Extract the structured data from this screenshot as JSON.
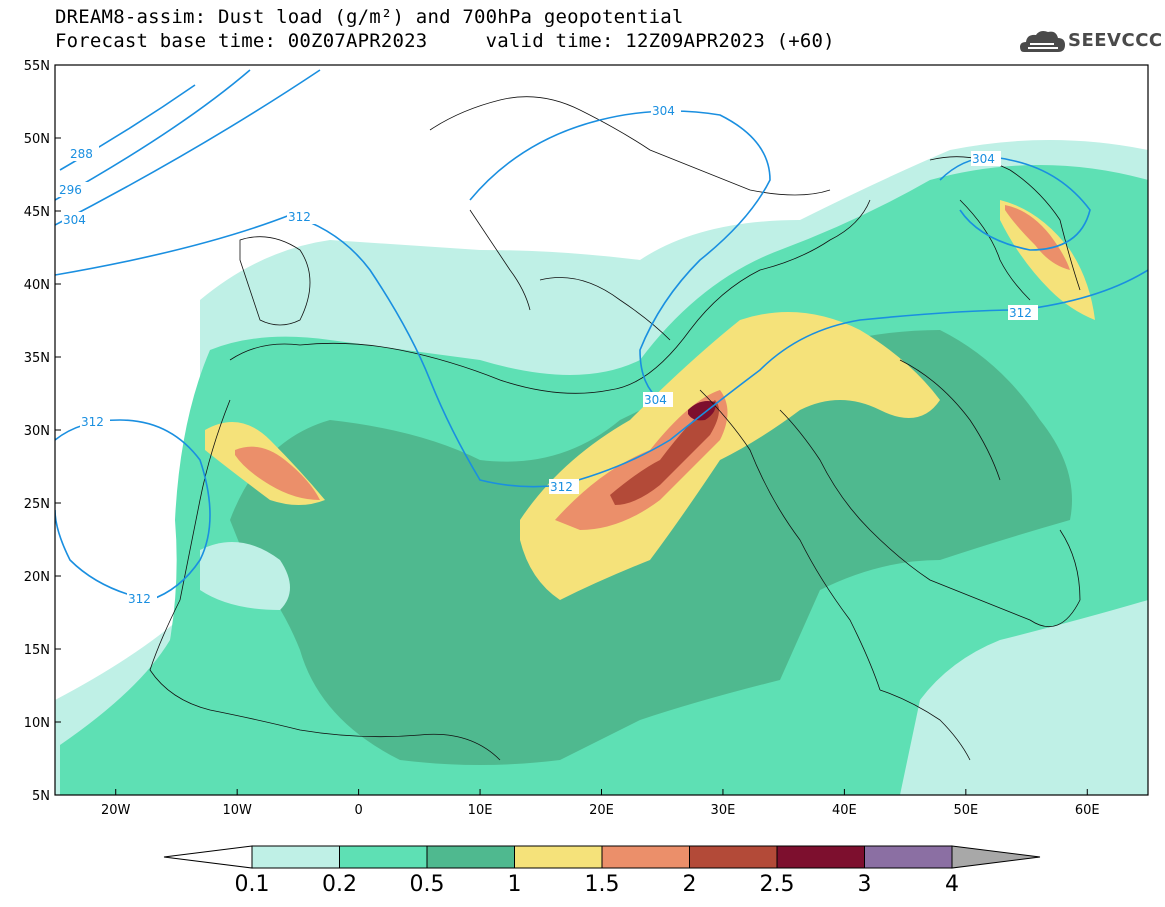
{
  "header": {
    "line1": "DREAM8-assim: Dust load (g/m²) and 700hPa geopotential",
    "line2": "Forecast base time: 00Z07APR2023     valid time: 12Z09APR2023 (+60)"
  },
  "logo": {
    "text": "SEEVCCC",
    "icon": "cloud-icon"
  },
  "map": {
    "lon_ticks": [
      "20W",
      "10W",
      "0",
      "10E",
      "20E",
      "30E",
      "40E",
      "50E",
      "60E"
    ],
    "lat_ticks": [
      "55N",
      "50N",
      "45N",
      "40N",
      "35N",
      "30N",
      "25N",
      "20N",
      "15N",
      "10N",
      "5N"
    ],
    "lon_range": [
      -25,
      65
    ],
    "lat_range": [
      5,
      55
    ],
    "contour_labels": [
      "288",
      "296",
      "304",
      "312",
      "312",
      "304",
      "304",
      "312",
      "312",
      "312"
    ],
    "contour_color": "#1a8fe0"
  },
  "colorbar": {
    "labels": [
      "0.1",
      "0.2",
      "0.5",
      "1",
      "1.5",
      "2",
      "2.5",
      "3",
      "4"
    ],
    "colors": [
      "#bff0e6",
      "#5ee0b4",
      "#4fb98f",
      "#f5e27a",
      "#eb8f6a",
      "#b34a38",
      "#7d0f2e",
      "#8b6fa3",
      "#a8a8a8"
    ]
  }
}
